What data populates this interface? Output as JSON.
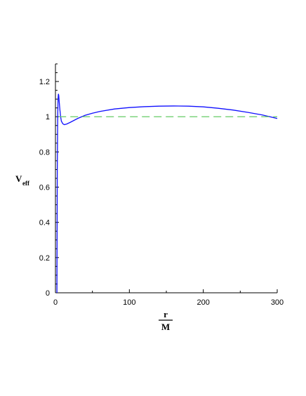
{
  "chart_data": {
    "type": "line",
    "title": "",
    "ylabel": {
      "main": "V",
      "sub": "eff"
    },
    "xlabel": {
      "numerator": "r",
      "denominator": "M"
    },
    "xlim": [
      0,
      300
    ],
    "ylim": [
      0,
      1.3
    ],
    "x_ticks": [
      0,
      100,
      200,
      300
    ],
    "x_tick_labels": [
      "0",
      "100",
      "200",
      "300"
    ],
    "y_ticks": [
      0,
      0.2,
      0.4,
      0.6,
      0.8,
      1,
      1.2
    ],
    "y_tick_labels": [
      "0",
      "0.2",
      "0.4",
      "0.6",
      "0.8",
      "1",
      "1.2"
    ],
    "grid": false,
    "legend": "none",
    "series": [
      {
        "style": "solid",
        "color": "#1010ff",
        "x": [
          2,
          2.5,
          3,
          3.5,
          4,
          4.5,
          5,
          6,
          7,
          8,
          10,
          12,
          15,
          20,
          30,
          40,
          50,
          60,
          80,
          100,
          120,
          140,
          160,
          180,
          200,
          220,
          240,
          260,
          280,
          300
        ],
        "y": [
          0,
          0.7,
          0.98,
          1.1,
          1.13,
          1.12,
          1.09,
          1.04,
          1.0,
          0.975,
          0.96,
          0.955,
          0.958,
          0.968,
          0.99,
          1.008,
          1.02,
          1.03,
          1.044,
          1.052,
          1.057,
          1.06,
          1.061,
          1.06,
          1.056,
          1.048,
          1.038,
          1.025,
          1.01,
          0.99
        ]
      },
      {
        "style": "dashed",
        "color": "#66cc66",
        "x": [
          4,
          300
        ],
        "y": [
          1,
          1
        ]
      }
    ]
  }
}
